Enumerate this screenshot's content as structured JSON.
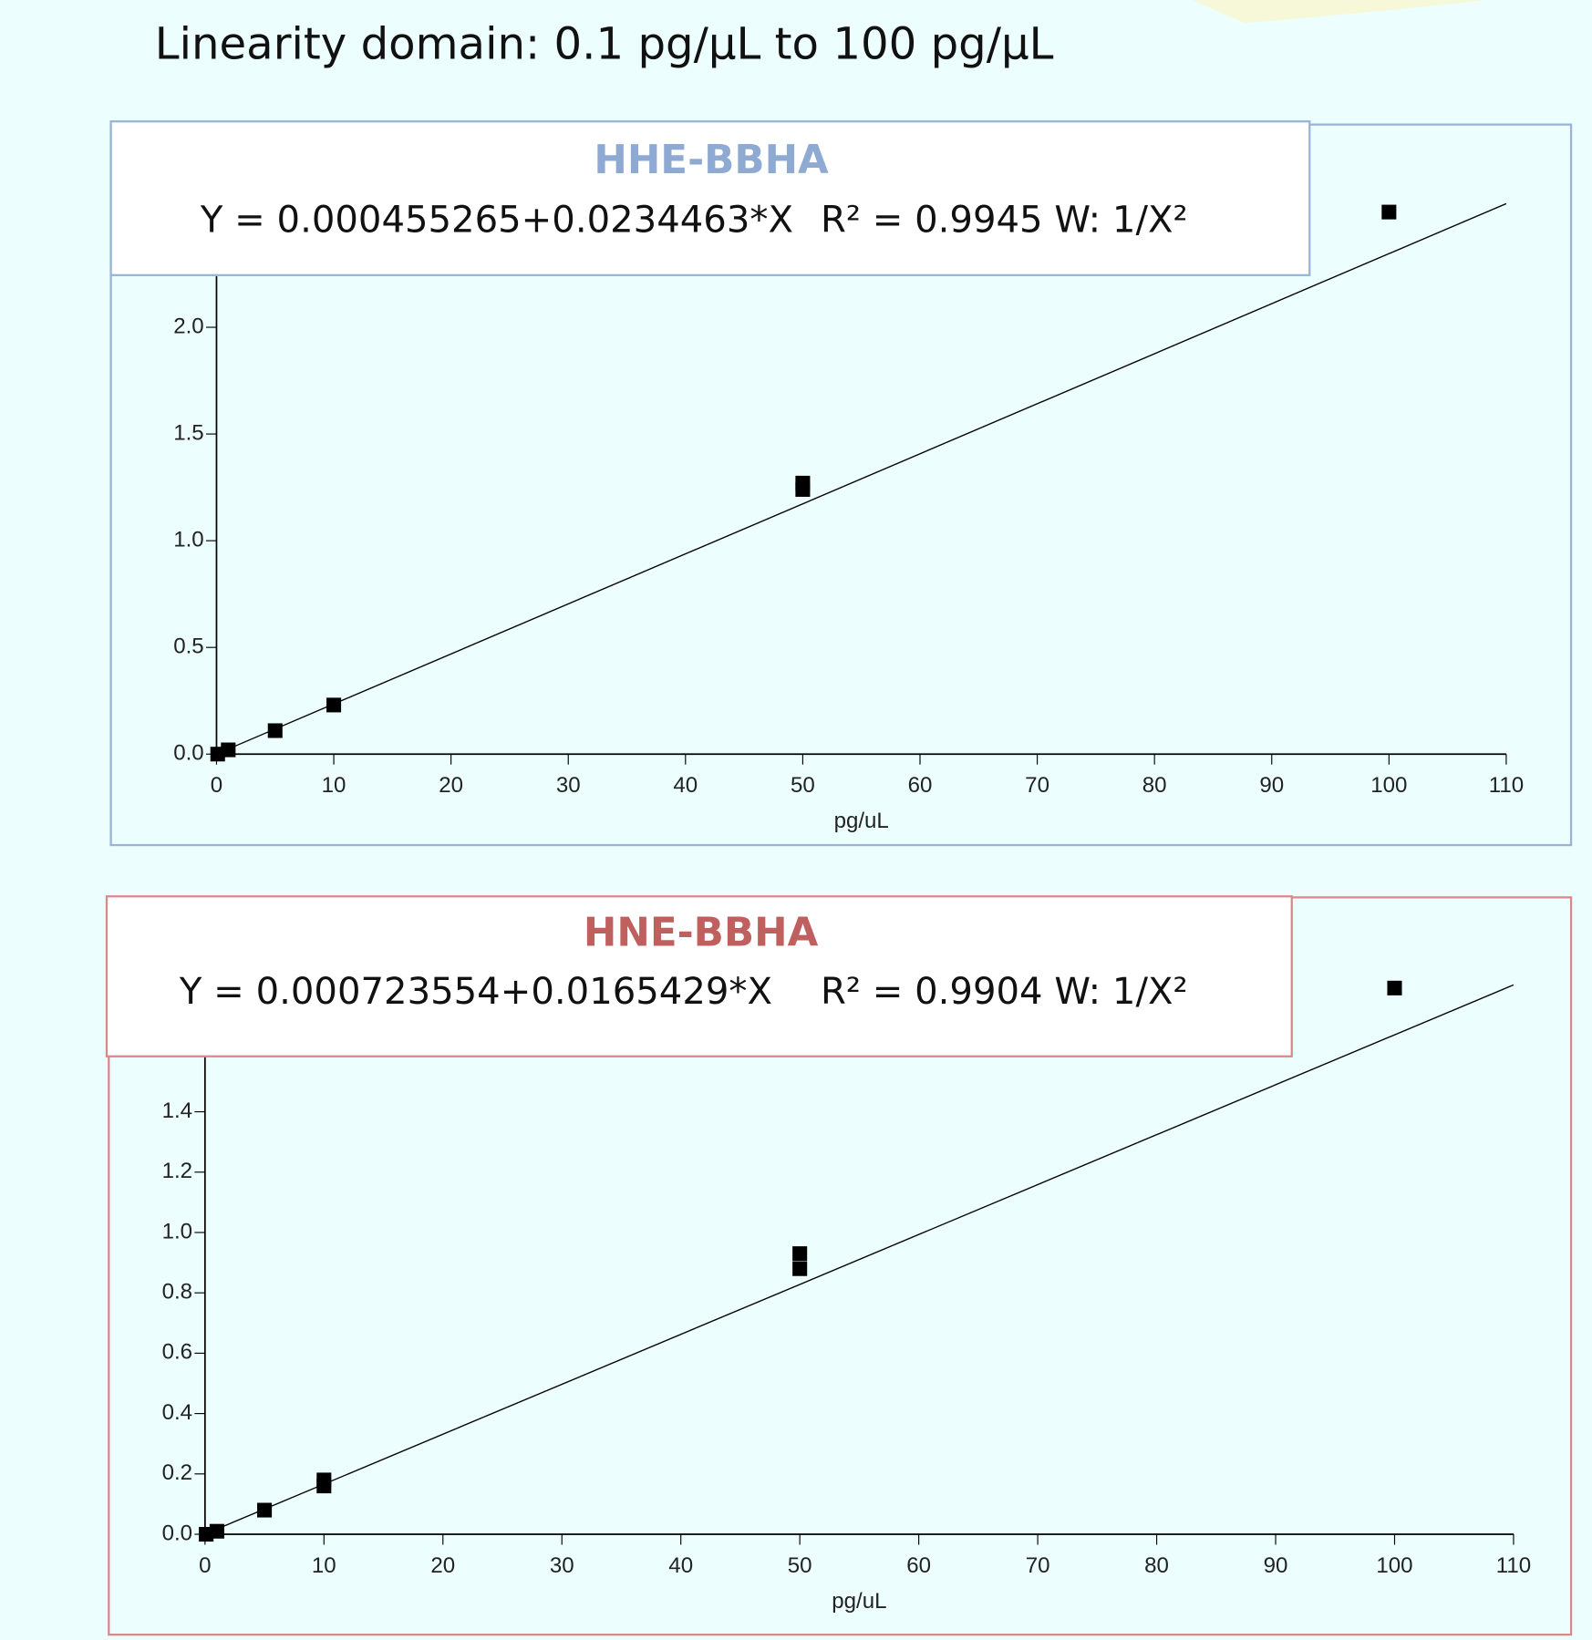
{
  "title": "Linearity domain:  0.1 pg/µL to 100 pg/µL",
  "chart_data": [
    {
      "type": "scatter",
      "title": "HHE-BBHA",
      "title_color": "#8eaad2",
      "border_color": "#9ab4d4",
      "equation": "Y = 0.000455265+0.0234463*X",
      "r2_label": "R² = 0.9945 W: 1/X²",
      "x_label": "pg/uL",
      "color": "#000000",
      "x": [
        0.1,
        1,
        5,
        10,
        50,
        50,
        100
      ],
      "y": [
        0.0,
        0.02,
        0.11,
        0.23,
        1.24,
        1.27,
        2.54
      ],
      "fit": {
        "intercept": 0.000455265,
        "slope": 0.0234463
      },
      "xlim": [
        0,
        110
      ],
      "ylim": [
        0,
        2.95
      ],
      "xticks": [
        0,
        10,
        20,
        30,
        40,
        50,
        60,
        70,
        80,
        90,
        100,
        110
      ],
      "yticks": [
        {
          "value": 0,
          "label": "0.0"
        },
        0.5,
        {
          "value": 1,
          "label": "1.0"
        },
        1.5,
        {
          "value": 2,
          "label": "2.0"
        }
      ]
    },
    {
      "type": "scatter",
      "title": "HNE-BBHA",
      "title_color": "#c0605e",
      "border_color": "#d88a8a",
      "equation": "Y = 0.000723554+0.0165429*X",
      "r2_label": "R² = 0.9904 W: 1/X²",
      "x_label": "pg/uL",
      "color": "#000000",
      "x": [
        0.1,
        1,
        5,
        10,
        10,
        50,
        50,
        100
      ],
      "y": [
        0.0,
        0.01,
        0.08,
        0.16,
        0.18,
        0.88,
        0.93,
        1.81
      ],
      "fit": {
        "intercept": 0.000723554,
        "slope": 0.0165429
      },
      "xlim": [
        0,
        110
      ],
      "ylim": [
        0,
        2.1
      ],
      "xticks": [
        0,
        10,
        20,
        30,
        40,
        50,
        60,
        70,
        80,
        90,
        100,
        110
      ],
      "yticks": [
        {
          "value": 0,
          "label": "0.0"
        },
        0.2,
        0.4,
        0.6,
        0.8,
        {
          "value": 1,
          "label": "1.0"
        },
        1.2,
        1.4
      ]
    }
  ]
}
